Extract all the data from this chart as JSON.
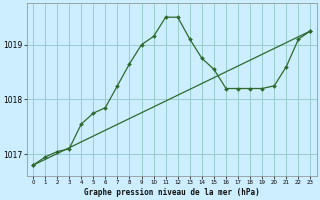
{
  "title": "Graphe pression niveau de la mer (hPa)",
  "background_color": "#cceeff",
  "grid_color": "#99cccc",
  "line_color": "#2d6a2d",
  "x_min": -0.5,
  "x_max": 23.5,
  "y_min": 1016.6,
  "y_max": 1019.75,
  "yticks": [
    1017,
    1018,
    1019
  ],
  "xticks": [
    0,
    1,
    2,
    3,
    4,
    5,
    6,
    7,
    8,
    9,
    10,
    11,
    12,
    13,
    14,
    15,
    16,
    17,
    18,
    19,
    20,
    21,
    22,
    23
  ],
  "series1_x": [
    0,
    1,
    2,
    3,
    4,
    5,
    6,
    7,
    8,
    9,
    10,
    11,
    12,
    13,
    14,
    15,
    16,
    17,
    18,
    19,
    20,
    21,
    22,
    23
  ],
  "series1_y": [
    1016.8,
    1016.95,
    1017.05,
    1017.1,
    1017.55,
    1017.75,
    1017.85,
    1018.25,
    1018.65,
    1019.0,
    1019.15,
    1019.5,
    1019.5,
    1019.1,
    1018.75,
    1018.55,
    1018.2,
    1018.2,
    1018.2,
    1018.2,
    1018.25,
    1018.6,
    1019.1,
    1019.25
  ],
  "series2_x": [
    0,
    23
  ],
  "series2_y": [
    1016.8,
    1019.25
  ]
}
